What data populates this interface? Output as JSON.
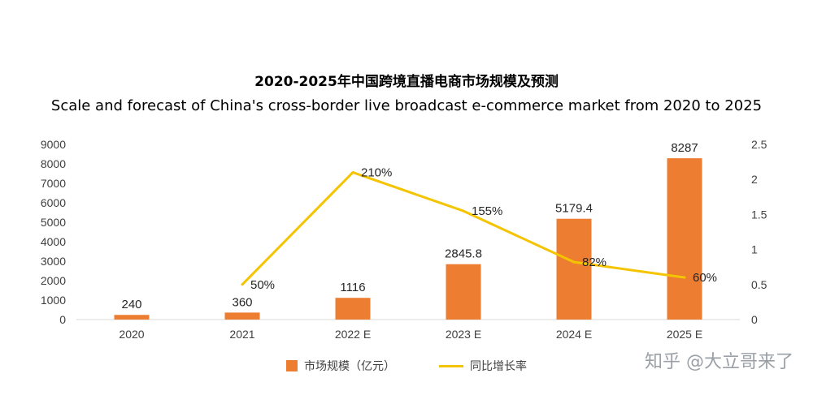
{
  "title_cn": "2020-2025年中国跨境直播电商市场规模及预测",
  "title_en": "Scale and forecast of China's cross-border live broadcast e-commerce market from 2020 to 2025",
  "watermark": "知乎 @大立哥来了",
  "colors": {
    "bar": "#ED7D31",
    "line": "#F5C400",
    "axis": "#D9D9D9",
    "text": "#404040"
  },
  "chart_data": {
    "type": "bar",
    "categories": [
      "2020",
      "2021",
      "2022 E",
      "2023 E",
      "2024 E",
      "2025 E"
    ],
    "series": [
      {
        "name": "市场规模（亿元）",
        "type": "bar",
        "axis": "left",
        "values": [
          240,
          360,
          1116,
          2845.8,
          5179.4,
          8287
        ],
        "labels": [
          "240",
          "360",
          "1116",
          "2845.8",
          "5179.4",
          "8287"
        ]
      },
      {
        "name": "同比增长率",
        "type": "line",
        "axis": "right",
        "values": [
          null,
          0.5,
          2.1,
          1.55,
          0.82,
          0.6
        ],
        "labels": [
          "",
          "50%",
          "210%",
          "155%",
          "82%",
          "60%"
        ]
      }
    ],
    "y_left": {
      "min": 0,
      "max": 9000,
      "ticks": [
        0,
        1000,
        2000,
        3000,
        4000,
        5000,
        6000,
        7000,
        8000,
        9000
      ]
    },
    "y_right": {
      "min": 0,
      "max": 2.5,
      "ticks": [
        "0",
        "0.5",
        "1",
        "1.5",
        "2",
        "2.5"
      ]
    },
    "grid": false,
    "legend_position": "bottom"
  }
}
